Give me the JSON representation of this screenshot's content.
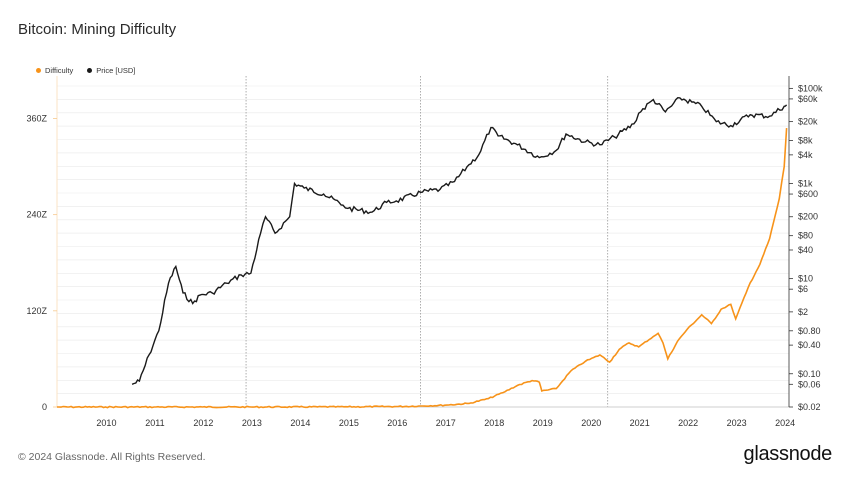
{
  "title": "Bitcoin: Mining Difficulty",
  "footer": "© 2024 Glassnode. All Rights Reserved.",
  "brand": "glassnode",
  "colors": {
    "difficulty": "#f7931a",
    "price": "#1a1a1a",
    "grid": "#e9e9e9",
    "halving": "#9a9a9a"
  },
  "chart_data": {
    "type": "line",
    "title": "Bitcoin: Mining Difficulty",
    "legend": {
      "placement": "top-left",
      "entries": [
        "Difficulty",
        "Price [USD]"
      ]
    },
    "x_ticks": [
      "2010",
      "2011",
      "2012",
      "2013",
      "2014",
      "2015",
      "2016",
      "2017",
      "2018",
      "2019",
      "2020",
      "2021",
      "2022",
      "2023",
      "2024"
    ],
    "x_range": [
      2009.0,
      2024.1
    ],
    "left_axis": {
      "ticks": [
        "0",
        "120Z",
        "240Z",
        "360Z"
      ],
      "range": [
        0,
        408
      ]
    },
    "right_axis": {
      "scale": "log",
      "ticks": [
        "$0.02",
        "$0.06",
        "$0.10",
        "$0.40",
        "$0.80",
        "$2",
        "$6",
        "$10",
        "$40",
        "$80",
        "$200",
        "$600",
        "$1k",
        "$4k",
        "$8k",
        "$20k",
        "$60k",
        "$100k"
      ],
      "tick_values": [
        0.02,
        0.06,
        0.1,
        0.4,
        0.8,
        2,
        6,
        10,
        40,
        80,
        200,
        600,
        1000,
        4000,
        8000,
        20000,
        60000,
        100000
      ],
      "range": [
        0.02,
        150000
      ]
    },
    "halving_lines": [
      2012.9,
      2016.5,
      2020.36
    ],
    "grid": true,
    "series": [
      {
        "name": "Difficulty",
        "axis": "left",
        "x": [
          2009.0,
          2010.0,
          2011.0,
          2012.0,
          2013.0,
          2014.0,
          2015.0,
          2016.0,
          2016.5,
          2017.0,
          2017.5,
          2017.9,
          2018.2,
          2018.5,
          2018.8,
          2018.95,
          2019.0,
          2019.3,
          2019.6,
          2019.9,
          2020.2,
          2020.4,
          2020.6,
          2020.8,
          2021.0,
          2021.3,
          2021.4,
          2021.5,
          2021.6,
          2021.8,
          2022.0,
          2022.3,
          2022.5,
          2022.7,
          2022.9,
          2023.0,
          2023.3,
          2023.5,
          2023.7,
          2023.9,
          2024.0,
          2024.05
        ],
        "values": [
          0,
          0,
          0,
          0,
          0,
          0.1,
          0.2,
          0.6,
          1.2,
          2.3,
          4.5,
          10.5,
          18,
          27,
          33,
          31,
          20,
          23,
          45,
          57,
          65,
          56,
          72,
          80,
          75,
          88,
          92,
          80,
          60,
          82,
          97,
          115,
          104,
          122,
          128,
          110,
          155,
          178,
          210,
          260,
          300,
          348
        ]
      },
      {
        "name": "Price [USD]",
        "axis": "right",
        "x": [
          2010.55,
          2010.7,
          2010.9,
          2011.1,
          2011.3,
          2011.45,
          2011.6,
          2011.8,
          2011.95,
          2012.2,
          2012.5,
          2012.8,
          2013.0,
          2013.2,
          2013.3,
          2013.5,
          2013.8,
          2013.9,
          2014.1,
          2014.5,
          2014.9,
          2015.0,
          2015.5,
          2015.8,
          2016.0,
          2016.5,
          2016.9,
          2017.2,
          2017.5,
          2017.7,
          2017.95,
          2018.1,
          2018.5,
          2018.95,
          2019.3,
          2019.5,
          2019.9,
          2020.2,
          2020.5,
          2020.9,
          2021.0,
          2021.3,
          2021.55,
          2021.85,
          2022.3,
          2022.6,
          2022.9,
          2023.3,
          2023.7,
          2024.0,
          2024.05
        ],
        "values": [
          0.06,
          0.07,
          0.25,
          0.8,
          8,
          18,
          5,
          3,
          4.5,
          5,
          8,
          12,
          13,
          90,
          200,
          90,
          200,
          1000,
          800,
          600,
          350,
          300,
          250,
          400,
          430,
          650,
          750,
          1100,
          2500,
          4000,
          15000,
          10000,
          6500,
          3500,
          5000,
          11000,
          7500,
          6500,
          9500,
          18000,
          30000,
          58000,
          32000,
          63000,
          42000,
          20000,
          16500,
          28000,
          26000,
          42000,
          45000
        ]
      }
    ]
  }
}
